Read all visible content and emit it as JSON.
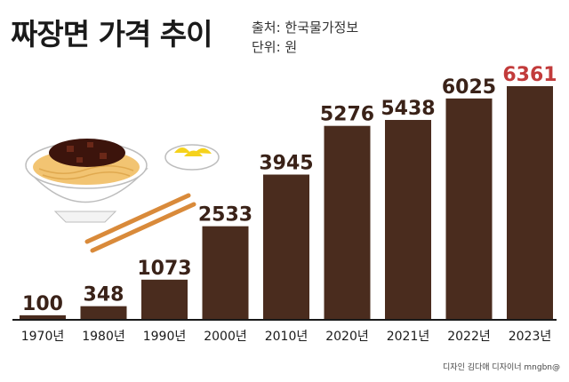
{
  "header": {
    "title": "짜장면 가격 추이",
    "source": "출처: 한국물가정보",
    "unit": "단위: 원"
  },
  "footer": {
    "credit": "디자인 김다애 디자이너 mngbn@"
  },
  "colors": {
    "bar": "#4a2c1e",
    "value_text": "#3a2218",
    "highlight_value": "#c23b3b",
    "axis": "#1a1a1a"
  },
  "chart_data": {
    "type": "bar",
    "title": "짜장면 가격 추이",
    "xlabel": "",
    "ylabel": "",
    "unit": "원",
    "categories": [
      "1970년",
      "1980년",
      "1990년",
      "2000년",
      "2010년",
      "2020년",
      "2021년",
      "2022년",
      "2023년"
    ],
    "values": [
      100,
      348,
      1073,
      2533,
      3945,
      5276,
      5438,
      6025,
      6361
    ],
    "ylim": [
      0,
      6361
    ],
    "grid": false,
    "legend": "none",
    "highlight_index": 8
  }
}
